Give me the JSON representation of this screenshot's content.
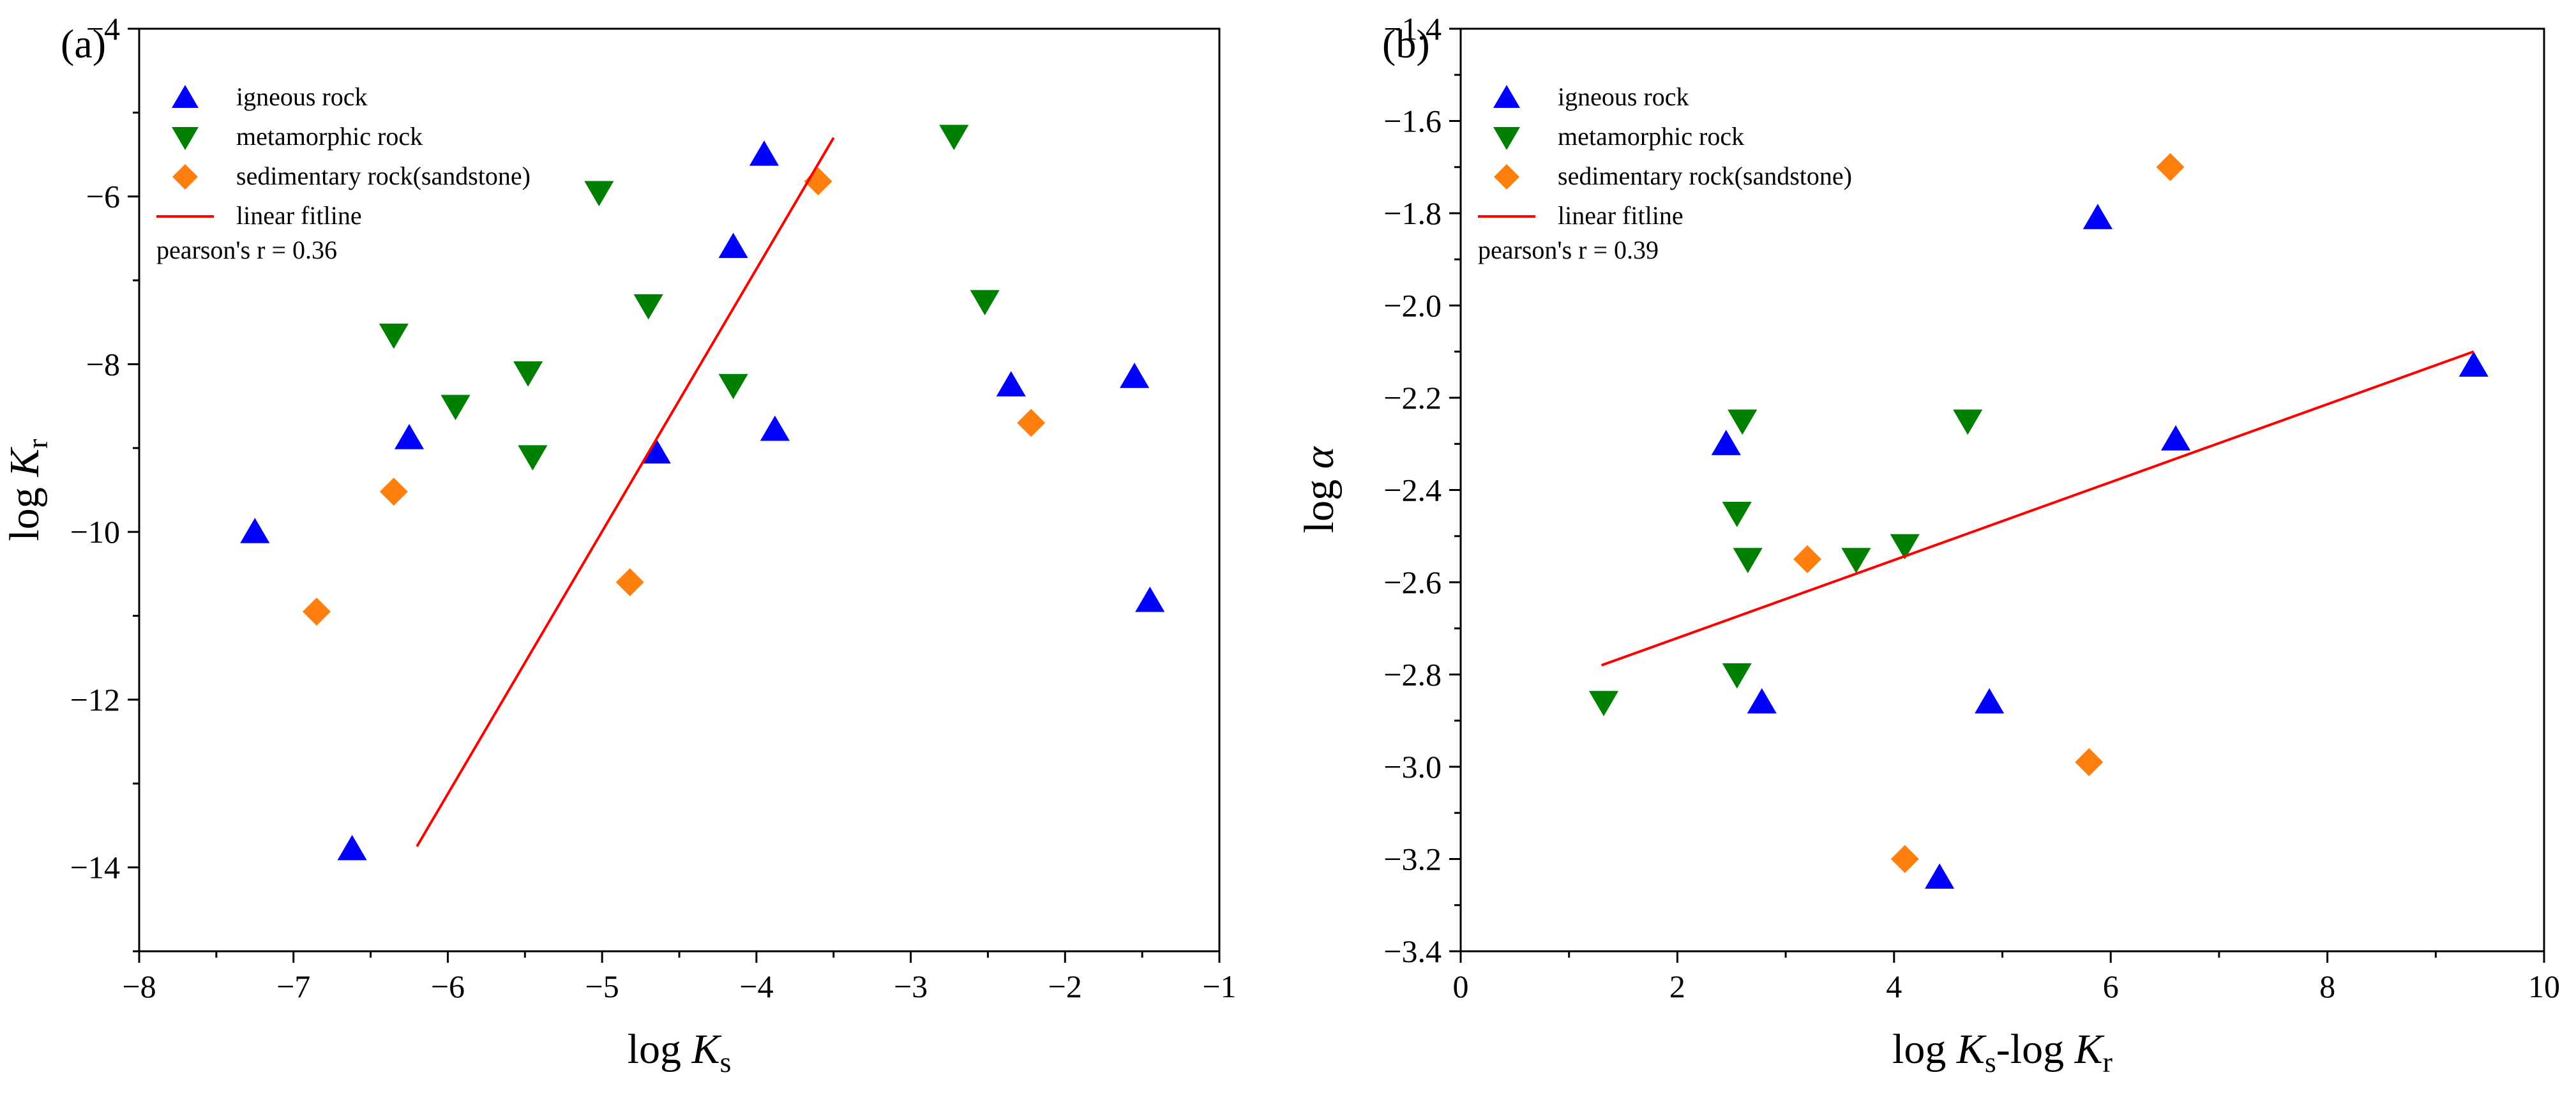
{
  "chart_data": [
    {
      "type": "scatter",
      "panel_label": "(a)",
      "xlabel": {
        "base": "log ",
        "var": "K",
        "sub": "s"
      },
      "ylabel": {
        "base": "log ",
        "var": "K",
        "sub": "r"
      },
      "xlim": [
        -8,
        -1
      ],
      "ylim": [
        -15,
        -4
      ],
      "xticks": [
        -8,
        -7,
        -6,
        -5,
        -4,
        -3,
        -2,
        -1
      ],
      "xtick_labels": [
        "−8",
        "−7",
        "−6",
        "−5",
        "−4",
        "−3",
        "−2",
        "−1"
      ],
      "yticks": [
        -14,
        -12,
        -10,
        -8,
        -6,
        -4
      ],
      "ytick_labels": [
        "−14",
        "−12",
        "−10",
        "−8",
        "−6",
        "−4"
      ],
      "series": [
        {
          "name": "igneous rock",
          "marker": "triangle-up",
          "color": "#0000ff",
          "points": [
            [
              -7.25,
              -10.0
            ],
            [
              -6.62,
              -13.78
            ],
            [
              -6.25,
              -8.88
            ],
            [
              -4.65,
              -9.05
            ],
            [
              -4.15,
              -6.6
            ],
            [
              -3.95,
              -5.5
            ],
            [
              -3.88,
              -8.78
            ],
            [
              -2.35,
              -8.25
            ],
            [
              -1.55,
              -8.15
            ],
            [
              -1.45,
              -10.82
            ]
          ]
        },
        {
          "name": "metamorphic rock",
          "marker": "triangle-down",
          "color": "#008000",
          "points": [
            [
              -6.35,
              -7.65
            ],
            [
              -5.95,
              -8.5
            ],
            [
              -5.48,
              -8.1
            ],
            [
              -5.45,
              -9.1
            ],
            [
              -5.02,
              -5.95
            ],
            [
              -4.7,
              -7.3
            ],
            [
              -4.15,
              -8.25
            ],
            [
              -2.72,
              -5.28
            ],
            [
              -2.52,
              -7.25
            ]
          ]
        },
        {
          "name": "sedimentary rock(sandstone)",
          "marker": "diamond",
          "color": "#ff7f0e",
          "points": [
            [
              -6.85,
              -10.95
            ],
            [
              -6.35,
              -9.52
            ],
            [
              -4.82,
              -10.6
            ],
            [
              -3.6,
              -5.82
            ],
            [
              -2.22,
              -8.7
            ]
          ]
        },
        {
          "name": "linear fitline",
          "marker": "line",
          "color": "#ff0000",
          "points": [
            [
              -6.2,
              -13.75
            ],
            [
              -3.5,
              -5.3
            ]
          ]
        }
      ],
      "annotation": "pearson's r = 0.36",
      "legend_position": "top-left"
    },
    {
      "type": "scatter",
      "panel_label": "(b)",
      "xlabel": {
        "base": "log ",
        "var": "K",
        "sub": "s",
        "mid": "-log ",
        "var2": "K",
        "sub2": "r"
      },
      "ylabel": {
        "base": "log ",
        "var": "α"
      },
      "xlim": [
        0,
        10
      ],
      "ylim": [
        -3.4,
        -1.4
      ],
      "xticks": [
        0,
        2,
        4,
        6,
        8,
        10
      ],
      "xtick_labels": [
        "0",
        "2",
        "4",
        "6",
        "8",
        "10"
      ],
      "yticks": [
        -3.4,
        -3.2,
        -3.0,
        -2.8,
        -2.6,
        -2.4,
        -2.2,
        -2.0,
        -1.8,
        -1.6,
        -1.4
      ],
      "ytick_labels": [
        "−3.4",
        "−3.2",
        "−3.0",
        "−2.8",
        "−2.6",
        "−2.4",
        "−2.2",
        "−2.0",
        "−1.8",
        "−1.6",
        "−1.4"
      ],
      "series": [
        {
          "name": "igneous rock",
          "marker": "triangle-up",
          "color": "#0000ff",
          "points": [
            [
              2.45,
              -2.3
            ],
            [
              2.78,
              -2.86
            ],
            [
              4.42,
              -3.24
            ],
            [
              4.88,
              -2.86
            ],
            [
              5.88,
              -1.81
            ],
            [
              6.6,
              -2.29
            ],
            [
              9.35,
              -2.13
            ]
          ]
        },
        {
          "name": "metamorphic rock",
          "marker": "triangle-down",
          "color": "#008000",
          "points": [
            [
              1.32,
              -2.86
            ],
            [
              2.55,
              -2.45
            ],
            [
              2.55,
              -2.8
            ],
            [
              2.6,
              -2.25
            ],
            [
              2.65,
              -2.55
            ],
            [
              3.65,
              -2.55
            ],
            [
              4.1,
              -2.52
            ],
            [
              4.68,
              -2.25
            ]
          ]
        },
        {
          "name": "sedimentary rock(sandstone)",
          "marker": "diamond",
          "color": "#ff7f0e",
          "points": [
            [
              3.2,
              -2.55
            ],
            [
              4.1,
              -3.2
            ],
            [
              5.8,
              -2.99
            ],
            [
              6.55,
              -1.7
            ]
          ]
        },
        {
          "name": "linear fitline",
          "marker": "line",
          "color": "#ff0000",
          "points": [
            [
              1.3,
              -2.78
            ],
            [
              9.35,
              -2.1
            ]
          ]
        }
      ],
      "annotation": "pearson's r = 0.39",
      "legend_position": "top-left"
    }
  ]
}
